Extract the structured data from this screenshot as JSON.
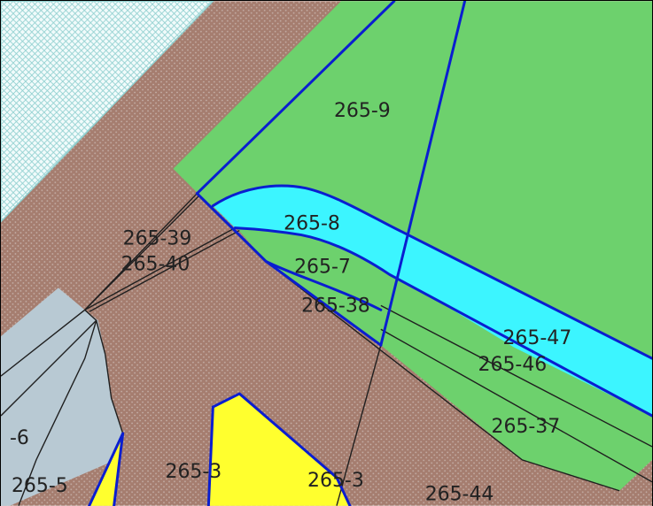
{
  "colors": {
    "background": "#a57d6f",
    "hatch": "#c6b0a8",
    "green": "#6dd16d",
    "cyan": "#3cf5ff",
    "yellow": "#ffff2e",
    "light_blue": "#b8c9d3",
    "water": "#f1fbfb",
    "water_hatch": "#8fcfcf",
    "blue_boundary": "#0a1ed0",
    "black_boundary": "#1f1f1f"
  },
  "icons": [
    "crosshatch-pattern",
    "dot-pattern"
  ],
  "labels": [
    "265-9",
    "265-8",
    "265-39",
    "265-40",
    "265-7",
    "265-38",
    "265-47",
    "265-46",
    "265-37",
    "-6",
    "265-5",
    "265-3",
    "265-3",
    "265-44"
  ]
}
